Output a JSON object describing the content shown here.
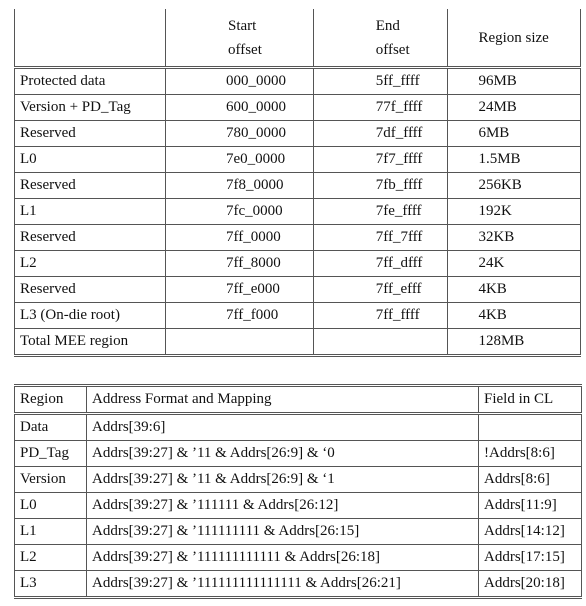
{
  "region_table": {
    "headers": {
      "name": "",
      "start": [
        "Start",
        "offset"
      ],
      "end": [
        "End",
        "offset"
      ],
      "size": "Region size"
    },
    "rows": [
      [
        "Protected data",
        "000_0000",
        "5ff_ffff",
        "96MB"
      ],
      [
        "Version + PD_Tag",
        "600_0000",
        "77f_ffff",
        "24MB"
      ],
      [
        "Reserved",
        "780_0000",
        "7df_ffff",
        "6MB"
      ],
      [
        "L0",
        "7e0_0000",
        "7f7_ffff",
        "1.5MB"
      ],
      [
        "Reserved",
        "7f8_0000",
        "7fb_ffff",
        "256KB"
      ],
      [
        "L1",
        "7fc_0000",
        "7fe_ffff",
        "192K"
      ],
      [
        "Reserved",
        "7ff_0000",
        "7ff_7fff",
        "32KB"
      ],
      [
        "L2",
        "7ff_8000",
        "7ff_dfff",
        "24K"
      ],
      [
        "Reserved",
        "7ff_e000",
        "7ff_efff",
        "4KB"
      ],
      [
        "L3 (On-die root)",
        "7ff_f000",
        "7ff_ffff",
        "4KB"
      ],
      [
        "Total MEE region",
        "",
        "",
        "128MB"
      ]
    ]
  },
  "mapping_table": {
    "headers": [
      "Region",
      "Address Format and Mapping",
      "Field in CL"
    ],
    "rows": [
      [
        "Data",
        "Addrs[39:6]",
        ""
      ],
      [
        "PD_Tag",
        "Addrs[39:27] & ’11 & Addrs[26:9] & ‘0",
        "!Addrs[8:6]"
      ],
      [
        "Version",
        "Addrs[39:27] & ’11 & Addrs[26:9] & ‘1",
        "Addrs[8:6]"
      ],
      [
        "L0",
        "Addrs[39:27] & ’111111 & Addrs[26:12]",
        "Addrs[11:9]"
      ],
      [
        "L1",
        "Addrs[39:27] & ’111111111 & Addrs[26:15]",
        "Addrs[14:12]"
      ],
      [
        "L2",
        "Addrs[39:27] & ’111111111111 & Addrs[26:18]",
        "Addrs[17:15]"
      ],
      [
        "L3",
        "Addrs[39:27] & ’111111111111111 & Addrs[26:21]",
        "Addrs[20:18]"
      ]
    ]
  }
}
